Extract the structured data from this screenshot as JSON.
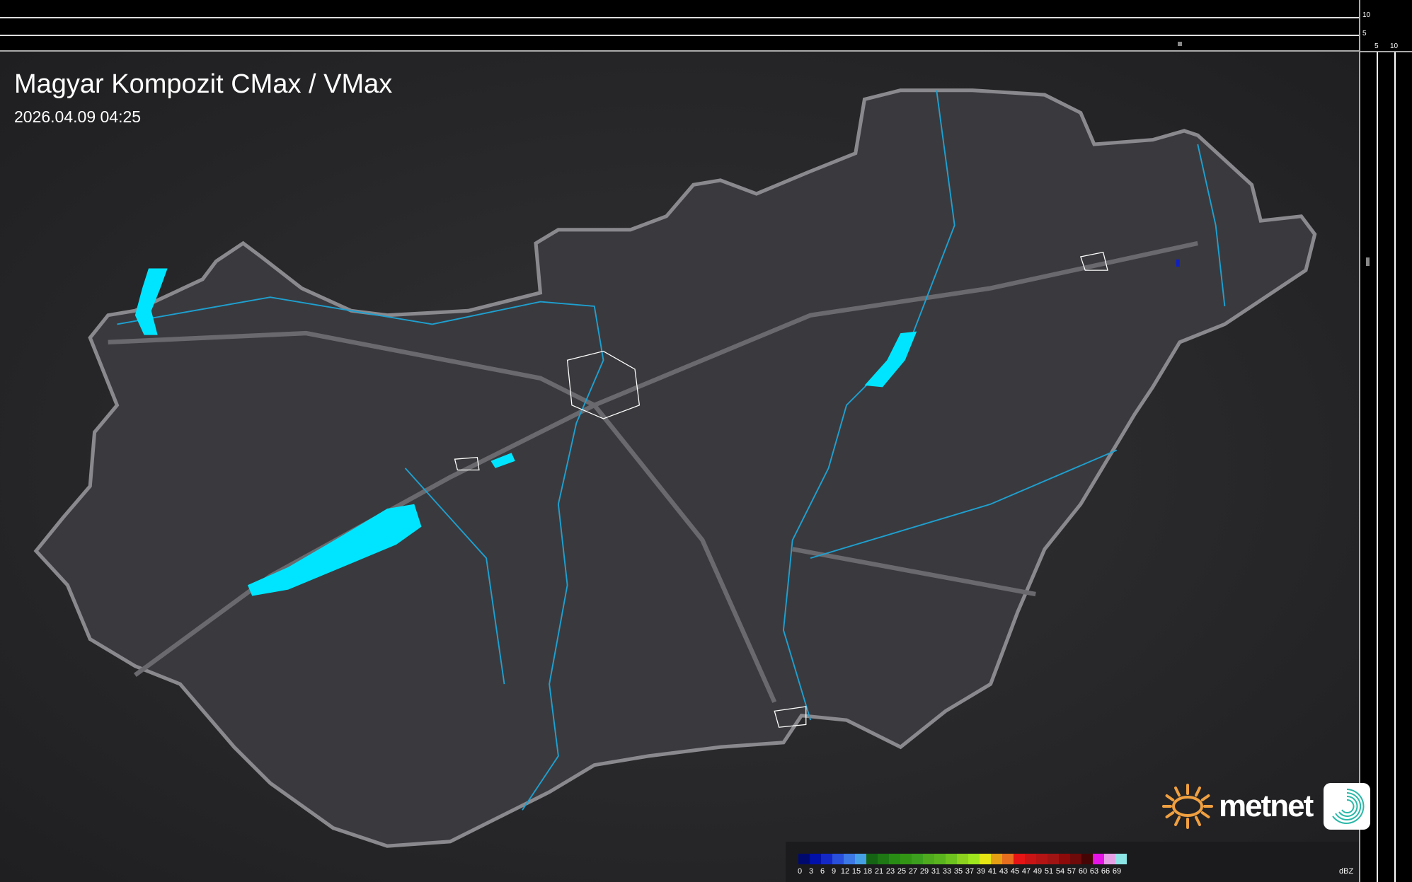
{
  "header": {
    "title": "Magyar Kompozit CMax / VMax",
    "timestamp": "2026.04.09 04:25"
  },
  "scale_ticks": {
    "vertical": [
      "10",
      "5"
    ],
    "horizontal": [
      "5",
      "10"
    ]
  },
  "legend": {
    "unit": "dBZ",
    "labels": [
      "0",
      "3",
      "6",
      "9",
      "12",
      "15",
      "18",
      "21",
      "23",
      "25",
      "27",
      "29",
      "31",
      "33",
      "35",
      "37",
      "39",
      "41",
      "43",
      "45",
      "47",
      "49",
      "51",
      "54",
      "57",
      "60",
      "63",
      "66",
      "69"
    ],
    "colors": [
      "#000a6e",
      "#0010a8",
      "#1428c8",
      "#2850dc",
      "#3c78e6",
      "#46a0e6",
      "#146414",
      "#1e7814",
      "#288c14",
      "#329614",
      "#3ca01e",
      "#50aa1e",
      "#5ab41e",
      "#6ec31e",
      "#8cd21e",
      "#a0e61e",
      "#e6e614",
      "#e6a014",
      "#e66e1e",
      "#e61414",
      "#c81414",
      "#b41414",
      "#a01414",
      "#8c0a0a",
      "#6e0a0a",
      "#460505",
      "#e614e6",
      "#e6a0e6",
      "#8ce6e6"
    ]
  },
  "brand": {
    "name": "metnet",
    "accent": "#f0a040",
    "icon_color": "#2ab8a8"
  },
  "map": {
    "land": "#3a3a3e",
    "border": "#8a8a8e",
    "rivers": "#1ea0d0",
    "lakes": "#00e5ff",
    "background": "#2a2a2c"
  }
}
